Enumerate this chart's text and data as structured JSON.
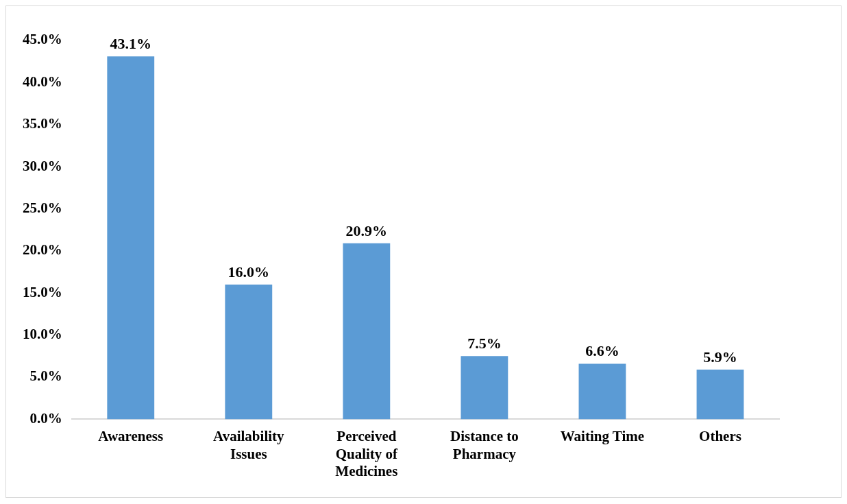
{
  "chart_data": {
    "type": "bar",
    "categories": [
      "Awareness",
      "Availability Issues",
      "Perceived Quality of Medicines",
      "Distance to Pharmacy",
      "Waiting Time",
      "Others"
    ],
    "values": [
      43.1,
      16.0,
      20.9,
      7.5,
      6.6,
      5.9
    ],
    "value_labels": [
      "43.1%",
      "16.0%",
      "20.9%",
      "7.5%",
      "6.6%",
      "5.9%"
    ],
    "color": "#5b9bd5",
    "ylim": [
      0,
      45
    ],
    "yticks": [
      {
        "value": 0,
        "label": "0.0%"
      },
      {
        "value": 5,
        "label": "5.0%"
      },
      {
        "value": 10,
        "label": "10.0%"
      },
      {
        "value": 15,
        "label": "15.0%"
      },
      {
        "value": 20,
        "label": "20.0%"
      },
      {
        "value": 25,
        "label": "25.0%"
      },
      {
        "value": 30,
        "label": "30.0%"
      },
      {
        "value": 35,
        "label": "35.0%"
      },
      {
        "value": 40,
        "label": "40.0%"
      },
      {
        "value": 45,
        "label": "45.0%"
      }
    ],
    "grid": false,
    "legend": false
  }
}
